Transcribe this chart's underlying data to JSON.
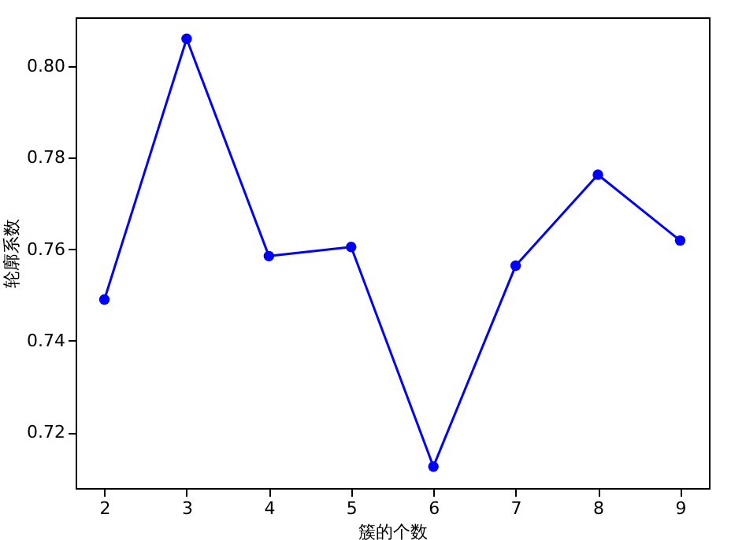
{
  "chart_data": {
    "type": "line",
    "xlabel": "簇的个数",
    "ylabel": "轮廓系数",
    "x": [
      2,
      3,
      4,
      5,
      6,
      7,
      8,
      9
    ],
    "series": [
      {
        "color": "#0000ff",
        "values": [
          0.749,
          0.806,
          0.7585,
          0.7605,
          0.7125,
          0.7564,
          0.7763,
          0.7619
        ]
      }
    ],
    "xlim": [
      1.65,
      9.35
    ],
    "xticks": [
      2,
      3,
      4,
      5,
      6,
      7,
      8,
      9
    ],
    "ylim": [
      0.7078,
      0.8107
    ],
    "yticks": [
      {
        "value": 0.72,
        "label": "0.72"
      },
      {
        "value": 0.74,
        "label": "0.74"
      },
      {
        "value": 0.76,
        "label": "0.76"
      },
      {
        "value": 0.78,
        "label": "0.78"
      },
      {
        "value": 0.8,
        "label": "0.80"
      }
    ],
    "marker": "circle",
    "line_style": "solid"
  }
}
